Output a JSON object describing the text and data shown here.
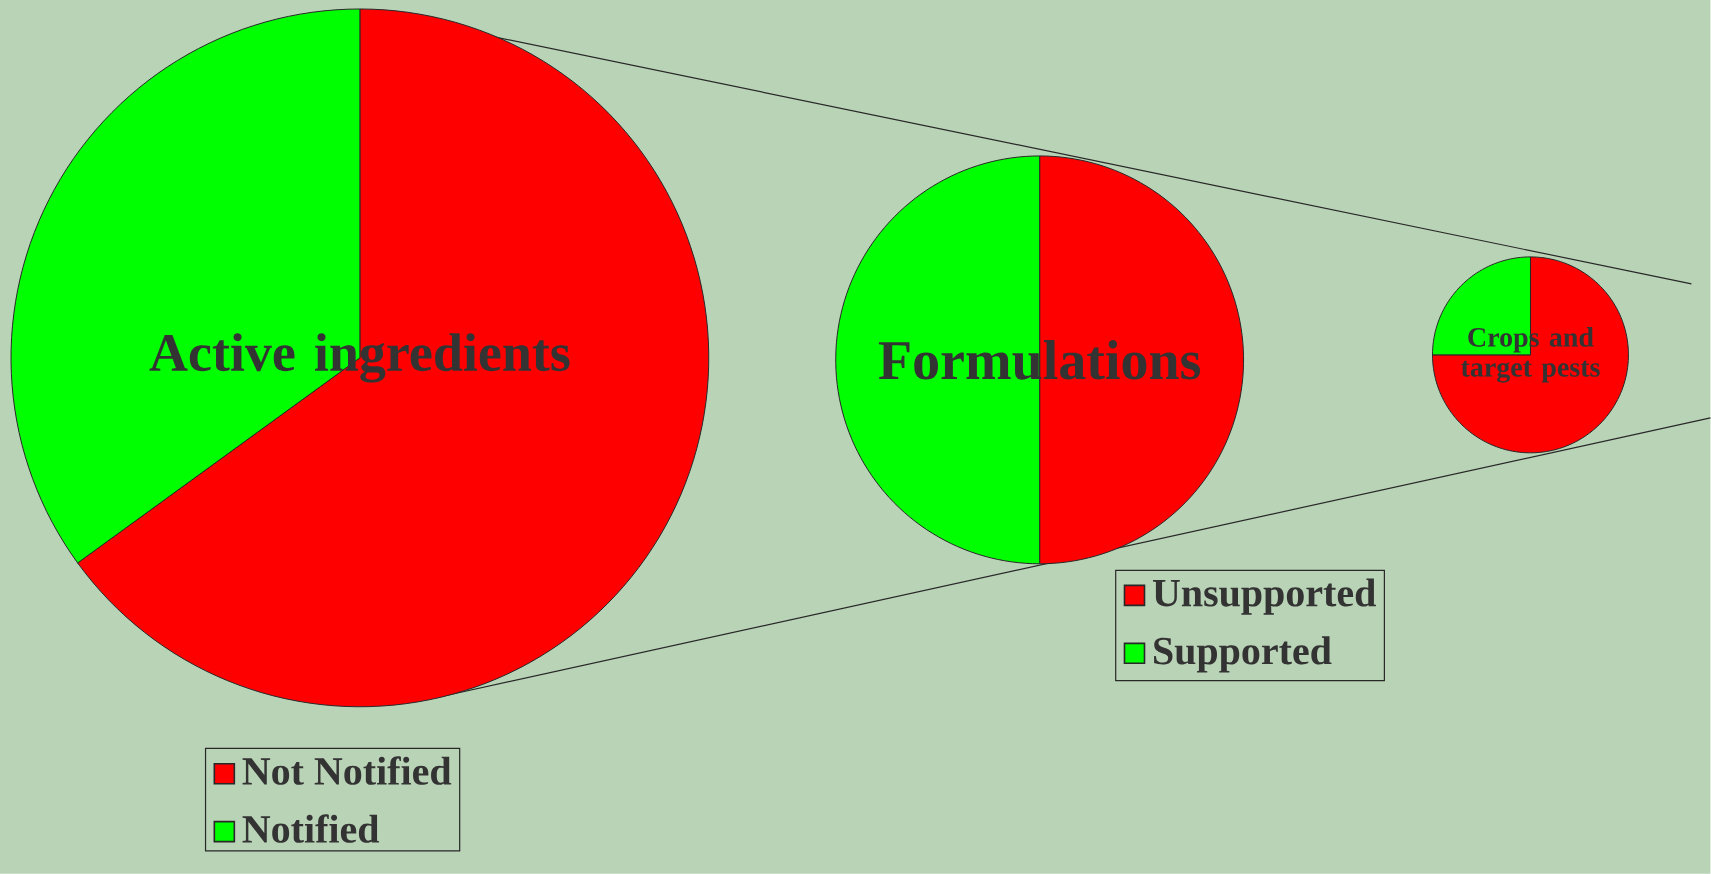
{
  "chart_data": [
    {
      "type": "pie",
      "title": "Active ingredients",
      "categories": [
        "Not Notified",
        "Notified"
      ],
      "values": [
        65,
        35
      ],
      "colors": [
        "#ff0000",
        "#00ff00"
      ],
      "legend": "bottom"
    },
    {
      "type": "pie",
      "title": "Formulations",
      "categories": [
        "Unsupported",
        "Supported"
      ],
      "values": [
        50,
        50
      ],
      "colors": [
        "#ff0000",
        "#00ff00"
      ],
      "legend": "bottom right"
    },
    {
      "type": "pie",
      "title": "Crops and target pests",
      "categories": [
        null,
        null
      ],
      "values": [
        75,
        25
      ],
      "colors": [
        "#ff0000",
        "#00ff00"
      ]
    }
  ]
}
